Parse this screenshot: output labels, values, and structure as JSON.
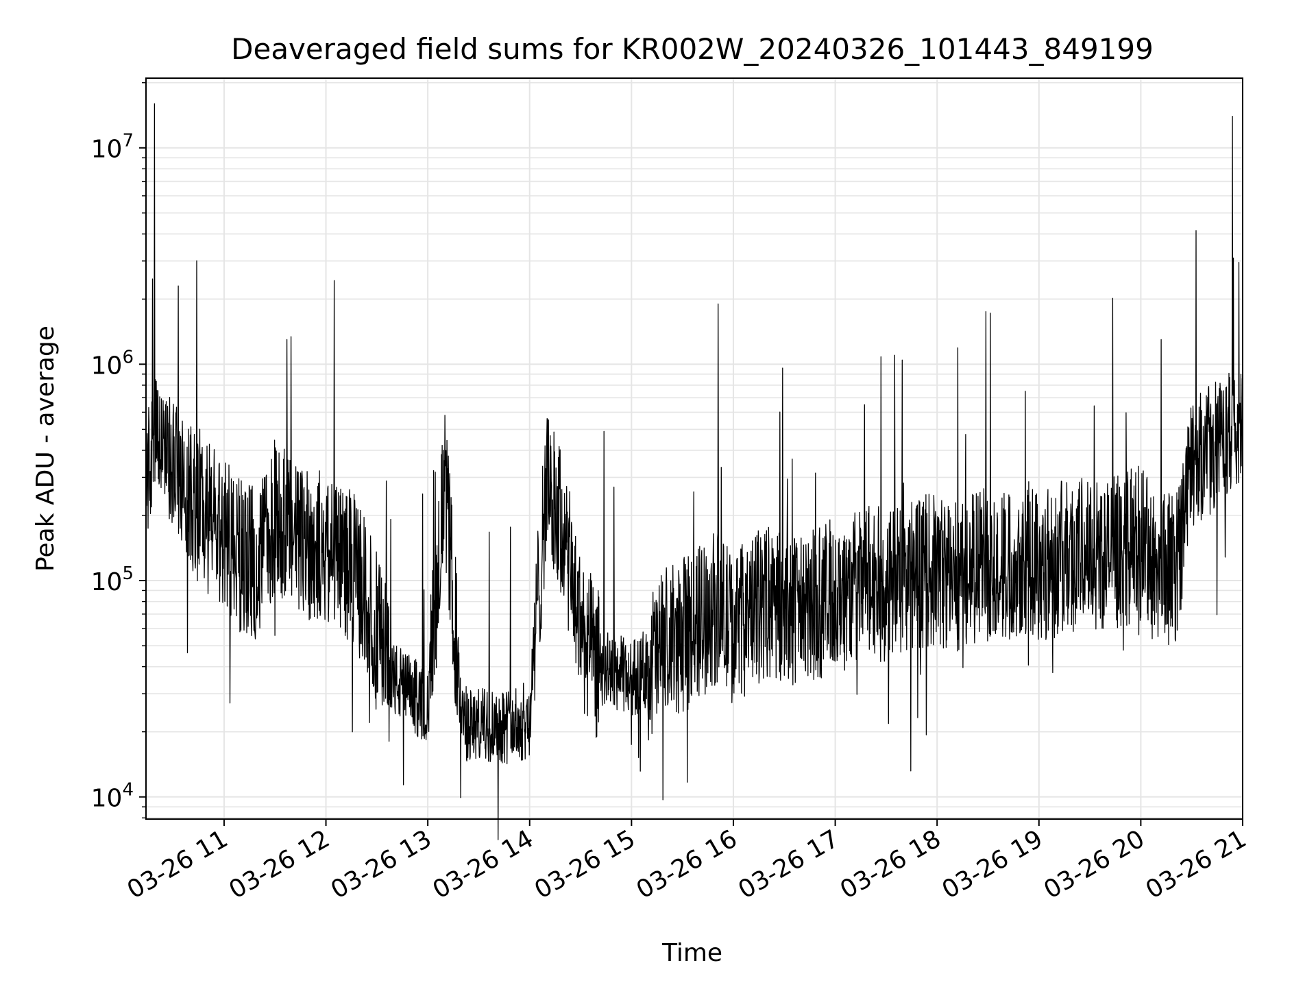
{
  "chart_data": {
    "type": "line",
    "title": "Deaveraged field sums for KR002W_20240326_101443_849199",
    "xlabel": "Time",
    "ylabel": "Peak ADU - average",
    "yscale": "log",
    "ylim": [
      7900,
      21000000
    ],
    "xlim": [
      "2024-03-26 10:14",
      "2024-03-26 21:00"
    ],
    "grid": true,
    "line_color": "#000000",
    "grid_color": "#e5e5e5",
    "y_ticks": [
      {
        "base": "10",
        "exp": "4",
        "value": 10000
      },
      {
        "base": "10",
        "exp": "5",
        "value": 100000
      },
      {
        "base": "10",
        "exp": "6",
        "value": 1000000
      },
      {
        "base": "10",
        "exp": "7",
        "value": 10000000
      }
    ],
    "x_ticks": [
      {
        "label": "03-26 11",
        "time": "2024-03-26 11:00"
      },
      {
        "label": "03-26 12",
        "time": "2024-03-26 12:00"
      },
      {
        "label": "03-26 13",
        "time": "2024-03-26 13:00"
      },
      {
        "label": "03-26 14",
        "time": "2024-03-26 14:00"
      },
      {
        "label": "03-26 15",
        "time": "2024-03-26 15:00"
      },
      {
        "label": "03-26 16",
        "time": "2024-03-26 16:00"
      },
      {
        "label": "03-26 17",
        "time": "2024-03-26 17:00"
      },
      {
        "label": "03-26 18",
        "time": "2024-03-26 18:00"
      },
      {
        "label": "03-26 19",
        "time": "2024-03-26 19:00"
      },
      {
        "label": "03-26 20",
        "time": "2024-03-26 20:00"
      },
      {
        "label": "03-26 21",
        "time": "2024-03-26 21:00"
      }
    ],
    "series": [
      {
        "x": [
          "2024-03-26 10:14",
          "2024-03-26 10:20",
          "2024-03-26 10:30",
          "2024-03-26 10:40",
          "2024-03-26 10:50",
          "2024-03-26 11:00",
          "2024-03-26 11:10",
          "2024-03-26 11:20",
          "2024-03-26 11:30",
          "2024-03-26 11:40",
          "2024-03-26 11:50",
          "2024-03-26 12:00",
          "2024-03-26 12:10",
          "2024-03-26 12:20",
          "2024-03-26 12:30",
          "2024-03-26 12:40",
          "2024-03-26 12:50",
          "2024-03-26 13:00",
          "2024-03-26 13:10",
          "2024-03-26 13:20",
          "2024-03-26 13:30",
          "2024-03-26 13:40",
          "2024-03-26 13:50",
          "2024-03-26 14:00",
          "2024-03-26 14:10",
          "2024-03-26 14:20",
          "2024-03-26 14:30",
          "2024-03-26 14:40",
          "2024-03-26 14:50",
          "2024-03-26 15:00",
          "2024-03-26 15:10",
          "2024-03-26 15:20",
          "2024-03-26 15:30",
          "2024-03-26 15:40",
          "2024-03-26 15:50",
          "2024-03-26 16:00",
          "2024-03-26 16:10",
          "2024-03-26 16:20",
          "2024-03-26 16:30",
          "2024-03-26 16:40",
          "2024-03-26 16:50",
          "2024-03-26 17:00",
          "2024-03-26 17:10",
          "2024-03-26 17:20",
          "2024-03-26 17:30",
          "2024-03-26 17:40",
          "2024-03-26 17:50",
          "2024-03-26 18:00",
          "2024-03-26 18:10",
          "2024-03-26 18:20",
          "2024-03-26 18:30",
          "2024-03-26 18:40",
          "2024-03-26 18:50",
          "2024-03-26 19:00",
          "2024-03-26 19:10",
          "2024-03-26 19:20",
          "2024-03-26 19:30",
          "2024-03-26 19:40",
          "2024-03-26 19:50",
          "2024-03-26 20:00",
          "2024-03-26 20:10",
          "2024-03-26 20:20",
          "2024-03-26 20:30",
          "2024-03-26 20:40",
          "2024-03-26 20:50",
          "2024-03-26 21:00"
        ],
        "y": [
          300000,
          450000,
          350000,
          250000,
          200000,
          160000,
          130000,
          120000,
          200000,
          160000,
          150000,
          140000,
          130000,
          100000,
          60000,
          35000,
          30000,
          26000,
          300000,
          22000,
          21000,
          22000,
          21000,
          23000,
          300000,
          160000,
          60000,
          40000,
          38000,
          35000,
          40000,
          50000,
          55000,
          65000,
          75000,
          60000,
          70000,
          80000,
          75000,
          70000,
          80000,
          85000,
          90000,
          100000,
          95000,
          100000,
          110000,
          110000,
          105000,
          115000,
          120000,
          115000,
          130000,
          120000,
          125000,
          130000,
          140000,
          130000,
          140000,
          150000,
          120000,
          110000,
          350000,
          400000,
          450000,
          480000
        ],
        "spikes": [
          {
            "time": "2024-03-26 10:19",
            "value": 16000000
          },
          {
            "time": "2024-03-26 10:33",
            "value": 2300000
          },
          {
            "time": "2024-03-26 11:37",
            "value": 1300000
          },
          {
            "time": "2024-03-26 15:51",
            "value": 1900000
          },
          {
            "time": "2024-03-26 17:35",
            "value": 1100000
          },
          {
            "time": "2024-03-26 20:12",
            "value": 1300000
          },
          {
            "time": "2024-03-26 20:54",
            "value": 14000000
          }
        ]
      }
    ]
  }
}
